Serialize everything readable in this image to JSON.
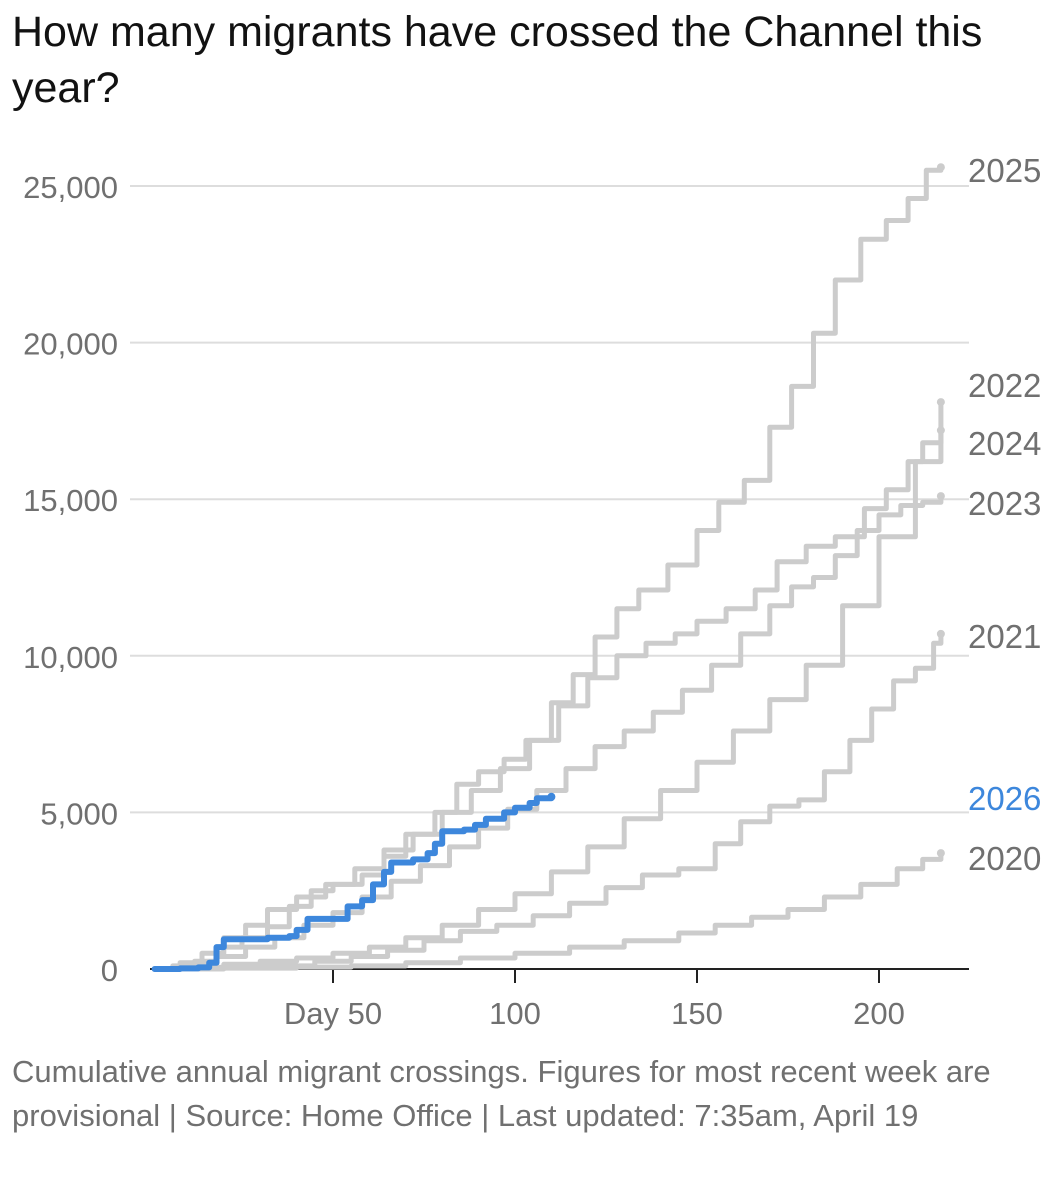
{
  "chart_data": {
    "type": "line",
    "title": "How many migrants have crossed the Channel this year?",
    "caption": "Cumulative annual migrant crossings. Figures for most recent week are provisional | Source: Home Office | Last updated: 7:35am, April 19",
    "xlabel": "",
    "ylabel": "",
    "xlim": [
      0,
      225
    ],
    "ylim": [
      0,
      25000
    ],
    "x_ticks": [
      {
        "value": 50,
        "label": "Day 50"
      },
      {
        "value": 100,
        "label": "100"
      },
      {
        "value": 150,
        "label": "150"
      },
      {
        "value": 200,
        "label": "200"
      }
    ],
    "y_ticks": [
      {
        "value": 0,
        "label": "0"
      },
      {
        "value": 5000,
        "label": "5,000"
      },
      {
        "value": 10000,
        "label": "10,000"
      },
      {
        "value": 15000,
        "label": "15,000"
      },
      {
        "value": 20000,
        "label": "20,000"
      },
      {
        "value": 25000,
        "label": "25,000"
      }
    ],
    "grid": true,
    "legend": "direct labels at line ends",
    "colors": {
      "highlight": "#3d87dc",
      "past_years": "#cccccc",
      "label_grey": "#707070",
      "grid": "#dddddd",
      "axis": "#222222"
    },
    "series": [
      {
        "name": "2025",
        "highlight": false,
        "points": [
          [
            1,
            0
          ],
          [
            6,
            100
          ],
          [
            12,
            250
          ],
          [
            18,
            700
          ],
          [
            25,
            1000
          ],
          [
            32,
            1350
          ],
          [
            38,
            2000
          ],
          [
            44,
            2500
          ],
          [
            50,
            2700
          ],
          [
            58,
            3000
          ],
          [
            64,
            3600
          ],
          [
            70,
            4300
          ],
          [
            78,
            5000
          ],
          [
            84,
            5900
          ],
          [
            90,
            6300
          ],
          [
            97,
            6700
          ],
          [
            103,
            7300
          ],
          [
            110,
            8500
          ],
          [
            116,
            9400
          ],
          [
            122,
            10600
          ],
          [
            128,
            11500
          ],
          [
            134,
            12100
          ],
          [
            142,
            12900
          ],
          [
            150,
            14000
          ],
          [
            156,
            14900
          ],
          [
            163,
            15600
          ],
          [
            170,
            17300
          ],
          [
            176,
            18600
          ],
          [
            182,
            20300
          ],
          [
            188,
            22000
          ],
          [
            195,
            23300
          ],
          [
            202,
            23900
          ],
          [
            208,
            24600
          ],
          [
            213,
            25500
          ],
          [
            217,
            25600
          ]
        ]
      },
      {
        "name": "2022",
        "highlight": false,
        "points": [
          [
            1,
            0
          ],
          [
            10,
            50
          ],
          [
            20,
            150
          ],
          [
            30,
            250
          ],
          [
            40,
            350
          ],
          [
            50,
            500
          ],
          [
            60,
            700
          ],
          [
            70,
            1000
          ],
          [
            80,
            1400
          ],
          [
            90,
            1900
          ],
          [
            100,
            2400
          ],
          [
            110,
            3100
          ],
          [
            120,
            3900
          ],
          [
            130,
            4800
          ],
          [
            140,
            5700
          ],
          [
            150,
            6600
          ],
          [
            160,
            7600
          ],
          [
            170,
            8600
          ],
          [
            180,
            9700
          ],
          [
            190,
            11600
          ],
          [
            200,
            13800
          ],
          [
            210,
            16200
          ],
          [
            217,
            18100
          ]
        ]
      },
      {
        "name": "2024",
        "highlight": false,
        "points": [
          [
            1,
            0
          ],
          [
            8,
            200
          ],
          [
            14,
            500
          ],
          [
            20,
            1000
          ],
          [
            26,
            1400
          ],
          [
            32,
            1900
          ],
          [
            40,
            2300
          ],
          [
            48,
            2700
          ],
          [
            56,
            3200
          ],
          [
            64,
            3800
          ],
          [
            72,
            4300
          ],
          [
            80,
            5000
          ],
          [
            88,
            5700
          ],
          [
            96,
            6400
          ],
          [
            104,
            7300
          ],
          [
            112,
            8400
          ],
          [
            120,
            9300
          ],
          [
            128,
            10000
          ],
          [
            136,
            10400
          ],
          [
            144,
            10700
          ],
          [
            150,
            11100
          ],
          [
            158,
            11500
          ],
          [
            166,
            12100
          ],
          [
            172,
            13000
          ],
          [
            180,
            13500
          ],
          [
            188,
            13800
          ],
          [
            196,
            14700
          ],
          [
            202,
            15300
          ],
          [
            208,
            16200
          ],
          [
            212,
            16800
          ],
          [
            217,
            17200
          ]
        ]
      },
      {
        "name": "2023",
        "highlight": false,
        "points": [
          [
            1,
            0
          ],
          [
            10,
            150
          ],
          [
            18,
            400
          ],
          [
            26,
            700
          ],
          [
            34,
            1000
          ],
          [
            42,
            1400
          ],
          [
            50,
            1800
          ],
          [
            58,
            2300
          ],
          [
            66,
            2800
          ],
          [
            74,
            3300
          ],
          [
            82,
            3900
          ],
          [
            90,
            4500
          ],
          [
            98,
            5100
          ],
          [
            106,
            5700
          ],
          [
            114,
            6400
          ],
          [
            122,
            7100
          ],
          [
            130,
            7600
          ],
          [
            138,
            8200
          ],
          [
            146,
            8900
          ],
          [
            154,
            9700
          ],
          [
            162,
            10700
          ],
          [
            170,
            11600
          ],
          [
            176,
            12200
          ],
          [
            182,
            12500
          ],
          [
            188,
            13200
          ],
          [
            194,
            14000
          ],
          [
            200,
            14500
          ],
          [
            206,
            14800
          ],
          [
            212,
            14900
          ],
          [
            217,
            15100
          ]
        ]
      },
      {
        "name": "2021",
        "highlight": false,
        "points": [
          [
            1,
            0
          ],
          [
            15,
            50
          ],
          [
            30,
            100
          ],
          [
            45,
            250
          ],
          [
            55,
            400
          ],
          [
            65,
            600
          ],
          [
            75,
            900
          ],
          [
            85,
            1200
          ],
          [
            95,
            1400
          ],
          [
            105,
            1700
          ],
          [
            115,
            2100
          ],
          [
            125,
            2600
          ],
          [
            135,
            3000
          ],
          [
            145,
            3200
          ],
          [
            155,
            4000
          ],
          [
            162,
            4700
          ],
          [
            170,
            5200
          ],
          [
            178,
            5400
          ],
          [
            185,
            6300
          ],
          [
            192,
            7300
          ],
          [
            198,
            8300
          ],
          [
            204,
            9200
          ],
          [
            210,
            9600
          ],
          [
            215,
            10400
          ],
          [
            217,
            10700
          ]
        ]
      },
      {
        "name": "2026",
        "highlight": true,
        "points": [
          [
            1,
            0
          ],
          [
            8,
            20
          ],
          [
            13,
            50
          ],
          [
            16,
            200
          ],
          [
            18,
            700
          ],
          [
            20,
            950
          ],
          [
            26,
            950
          ],
          [
            32,
            1000
          ],
          [
            38,
            1050
          ],
          [
            40,
            1250
          ],
          [
            43,
            1600
          ],
          [
            52,
            1600
          ],
          [
            54,
            2000
          ],
          [
            58,
            2200
          ],
          [
            61,
            2700
          ],
          [
            64,
            3100
          ],
          [
            66,
            3400
          ],
          [
            72,
            3500
          ],
          [
            76,
            3700
          ],
          [
            78,
            4000
          ],
          [
            80,
            4400
          ],
          [
            86,
            4450
          ],
          [
            89,
            4600
          ],
          [
            92,
            4800
          ],
          [
            97,
            5000
          ],
          [
            100,
            5150
          ],
          [
            104,
            5300
          ],
          [
            106,
            5450
          ],
          [
            110,
            5500
          ]
        ]
      },
      {
        "name": "2020",
        "highlight": false,
        "points": [
          [
            1,
            0
          ],
          [
            20,
            30
          ],
          [
            40,
            60
          ],
          [
            55,
            100
          ],
          [
            70,
            200
          ],
          [
            85,
            350
          ],
          [
            100,
            500
          ],
          [
            115,
            700
          ],
          [
            130,
            900
          ],
          [
            145,
            1150
          ],
          [
            155,
            1400
          ],
          [
            165,
            1650
          ],
          [
            175,
            1900
          ],
          [
            185,
            2300
          ],
          [
            195,
            2700
          ],
          [
            205,
            3200
          ],
          [
            212,
            3500
          ],
          [
            217,
            3700
          ]
        ]
      }
    ]
  }
}
